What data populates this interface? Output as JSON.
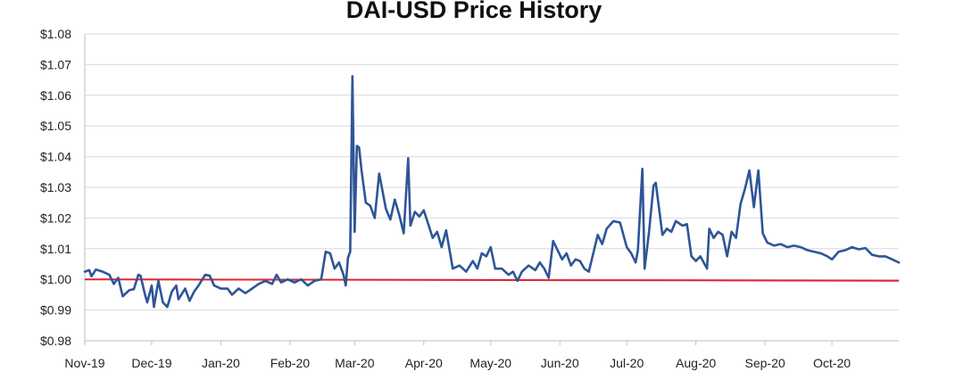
{
  "chart_data": {
    "type": "line",
    "title": "DAI-USD Price History",
    "xlabel": "",
    "ylabel": "",
    "x_tick_labels": [
      "Nov-19",
      "Dec-19",
      "Jan-20",
      "Feb-20",
      "Mar-20",
      "Apr-20",
      "May-20",
      "Jun-20",
      "Jul-20",
      "Aug-20",
      "Sep-20",
      "Oct-20"
    ],
    "y_tick_labels": [
      "$0.98",
      "$0.99",
      "$1.00",
      "$1.01",
      "$1.02",
      "$1.03",
      "$1.04",
      "$1.05",
      "$1.06",
      "$1.07",
      "$1.08"
    ],
    "ylim": [
      0.98,
      1.08
    ],
    "xlim": [
      "2019-11-01",
      "2020-10-31"
    ],
    "grid": "horizontal",
    "colors": {
      "price": "#2e5597",
      "peg": "#e0242f",
      "grid": "#d9d9d9",
      "axis": "#bfbfbf"
    },
    "reference_line": {
      "y": 1.0
    },
    "series": [
      {
        "points": [
          [
            "2019-11-01",
            1.0025
          ],
          [
            "2019-11-03",
            1.003
          ],
          [
            "2019-11-04",
            1.001
          ],
          [
            "2019-11-06",
            1.0032
          ],
          [
            "2019-11-09",
            1.0025
          ],
          [
            "2019-11-12",
            1.0015
          ],
          [
            "2019-11-14",
            0.9985
          ],
          [
            "2019-11-16",
            1.0005
          ],
          [
            "2019-11-18",
            0.9945
          ],
          [
            "2019-11-21",
            0.9965
          ],
          [
            "2019-11-23",
            0.9968
          ],
          [
            "2019-11-25",
            1.0015
          ],
          [
            "2019-11-26",
            1.0012
          ],
          [
            "2019-11-28",
            0.995
          ],
          [
            "2019-11-29",
            0.9925
          ],
          [
            "2019-12-01",
            0.998
          ],
          [
            "2019-12-02",
            0.991
          ],
          [
            "2019-12-04",
            0.9995
          ],
          [
            "2019-12-06",
            0.9925
          ],
          [
            "2019-12-08",
            0.991
          ],
          [
            "2019-12-10",
            0.996
          ],
          [
            "2019-12-12",
            0.998
          ],
          [
            "2019-12-13",
            0.9935
          ],
          [
            "2019-12-16",
            0.997
          ],
          [
            "2019-12-18",
            0.993
          ],
          [
            "2019-12-20",
            0.996
          ],
          [
            "2019-12-22",
            0.998
          ],
          [
            "2019-12-25",
            1.0015
          ],
          [
            "2019-12-27",
            1.0012
          ],
          [
            "2019-12-29",
            0.998
          ],
          [
            "2020-01-01",
            0.997
          ],
          [
            "2020-01-04",
            0.997
          ],
          [
            "2020-01-06",
            0.995
          ],
          [
            "2020-01-09",
            0.997
          ],
          [
            "2020-01-12",
            0.9955
          ],
          [
            "2020-01-15",
            0.997
          ],
          [
            "2020-01-18",
            0.9985
          ],
          [
            "2020-01-21",
            0.9995
          ],
          [
            "2020-01-24",
            0.9985
          ],
          [
            "2020-01-26",
            1.0015
          ],
          [
            "2020-01-28",
            0.999
          ],
          [
            "2020-01-31",
            1.0
          ],
          [
            "2020-02-03",
            0.999
          ],
          [
            "2020-02-06",
            1.0
          ],
          [
            "2020-02-09",
            0.998
          ],
          [
            "2020-02-12",
            0.9995
          ],
          [
            "2020-02-15",
            1.0
          ],
          [
            "2020-02-17",
            1.009
          ],
          [
            "2020-02-19",
            1.0085
          ],
          [
            "2020-02-21",
            1.0035
          ],
          [
            "2020-02-23",
            1.0055
          ],
          [
            "2020-02-25",
            1.0015
          ],
          [
            "2020-02-26",
            0.998
          ],
          [
            "2020-02-27",
            1.007
          ],
          [
            "2020-02-28",
            1.009
          ],
          [
            "2020-02-29",
            1.0662
          ],
          [
            "2020-03-01",
            1.0155
          ],
          [
            "2020-03-02",
            1.0435
          ],
          [
            "2020-03-03",
            1.043
          ],
          [
            "2020-03-04",
            1.036
          ],
          [
            "2020-03-06",
            1.025
          ],
          [
            "2020-03-08",
            1.024
          ],
          [
            "2020-03-10",
            1.02
          ],
          [
            "2020-03-12",
            1.0345
          ],
          [
            "2020-03-15",
            1.023
          ],
          [
            "2020-03-17",
            1.0195
          ],
          [
            "2020-03-19",
            1.026
          ],
          [
            "2020-03-21",
            1.021
          ],
          [
            "2020-03-23",
            1.015
          ],
          [
            "2020-03-25",
            1.0395
          ],
          [
            "2020-03-26",
            1.0175
          ],
          [
            "2020-03-28",
            1.022
          ],
          [
            "2020-03-30",
            1.0205
          ],
          [
            "2020-04-01",
            1.0225
          ],
          [
            "2020-04-03",
            1.018
          ],
          [
            "2020-04-05",
            1.0135
          ],
          [
            "2020-04-07",
            1.0155
          ],
          [
            "2020-04-09",
            1.0105
          ],
          [
            "2020-04-11",
            1.016
          ],
          [
            "2020-04-14",
            1.0035
          ],
          [
            "2020-04-17",
            1.0045
          ],
          [
            "2020-04-20",
            1.0025
          ],
          [
            "2020-04-23",
            1.006
          ],
          [
            "2020-04-25",
            1.0035
          ],
          [
            "2020-04-27",
            1.0085
          ],
          [
            "2020-04-29",
            1.0075
          ],
          [
            "2020-05-01",
            1.0105
          ],
          [
            "2020-05-03",
            1.0035
          ],
          [
            "2020-05-06",
            1.0035
          ],
          [
            "2020-05-09",
            1.0015
          ],
          [
            "2020-05-11",
            1.0025
          ],
          [
            "2020-05-13",
            0.9995
          ],
          [
            "2020-05-15",
            1.0025
          ],
          [
            "2020-05-18",
            1.0045
          ],
          [
            "2020-05-21",
            1.003
          ],
          [
            "2020-05-23",
            1.0055
          ],
          [
            "2020-05-25",
            1.0035
          ],
          [
            "2020-05-27",
            1.0005
          ],
          [
            "2020-05-29",
            1.0125
          ],
          [
            "2020-05-31",
            1.0095
          ],
          [
            "2020-06-02",
            1.0065
          ],
          [
            "2020-06-04",
            1.0085
          ],
          [
            "2020-06-06",
            1.0045
          ],
          [
            "2020-06-08",
            1.0065
          ],
          [
            "2020-06-10",
            1.006
          ],
          [
            "2020-06-12",
            1.0035
          ],
          [
            "2020-06-14",
            1.0025
          ],
          [
            "2020-06-16",
            1.0085
          ],
          [
            "2020-06-18",
            1.0145
          ],
          [
            "2020-06-20",
            1.0115
          ],
          [
            "2020-06-22",
            1.0165
          ],
          [
            "2020-06-25",
            1.019
          ],
          [
            "2020-06-28",
            1.0185
          ],
          [
            "2020-07-01",
            1.0105
          ],
          [
            "2020-07-03",
            1.0085
          ],
          [
            "2020-07-05",
            1.0055
          ],
          [
            "2020-07-06",
            1.0095
          ],
          [
            "2020-07-08",
            1.036
          ],
          [
            "2020-07-09",
            1.0035
          ],
          [
            "2020-07-11",
            1.0155
          ],
          [
            "2020-07-13",
            1.0305
          ],
          [
            "2020-07-14",
            1.0315
          ],
          [
            "2020-07-17",
            1.0145
          ],
          [
            "2020-07-19",
            1.0165
          ],
          [
            "2020-07-21",
            1.0155
          ],
          [
            "2020-07-23",
            1.019
          ],
          [
            "2020-07-26",
            1.0175
          ],
          [
            "2020-07-28",
            1.018
          ],
          [
            "2020-07-30",
            1.0075
          ],
          [
            "2020-08-01",
            1.006
          ],
          [
            "2020-08-03",
            1.0075
          ],
          [
            "2020-08-06",
            1.0035
          ],
          [
            "2020-08-07",
            1.0165
          ],
          [
            "2020-08-09",
            1.0135
          ],
          [
            "2020-08-11",
            1.0155
          ],
          [
            "2020-08-13",
            1.0145
          ],
          [
            "2020-08-15",
            1.0075
          ],
          [
            "2020-08-17",
            1.0155
          ],
          [
            "2020-08-19",
            1.0135
          ],
          [
            "2020-08-21",
            1.0245
          ],
          [
            "2020-08-23",
            1.0295
          ],
          [
            "2020-08-25",
            1.0355
          ],
          [
            "2020-08-27",
            1.0235
          ],
          [
            "2020-08-29",
            1.0355
          ],
          [
            "2020-08-31",
            1.015
          ],
          [
            "2020-09-02",
            1.012
          ],
          [
            "2020-09-05",
            1.011
          ],
          [
            "2020-09-08",
            1.0115
          ],
          [
            "2020-09-11",
            1.0105
          ],
          [
            "2020-09-14",
            1.011
          ],
          [
            "2020-09-17",
            1.0105
          ],
          [
            "2020-09-20",
            1.0095
          ],
          [
            "2020-09-23",
            1.009
          ],
          [
            "2020-09-26",
            1.0085
          ],
          [
            "2020-09-29",
            1.0075
          ],
          [
            "2020-10-01",
            1.0065
          ],
          [
            "2020-10-04",
            1.009
          ],
          [
            "2020-10-07",
            1.0095
          ],
          [
            "2020-10-10",
            1.0105
          ],
          [
            "2020-10-13",
            1.0098
          ],
          [
            "2020-10-16",
            1.0102
          ],
          [
            "2020-10-19",
            1.008
          ],
          [
            "2020-10-22",
            1.0075
          ],
          [
            "2020-10-25",
            1.0075
          ],
          [
            "2020-10-28",
            1.0065
          ],
          [
            "2020-10-31",
            1.0055
          ]
        ]
      }
    ]
  }
}
